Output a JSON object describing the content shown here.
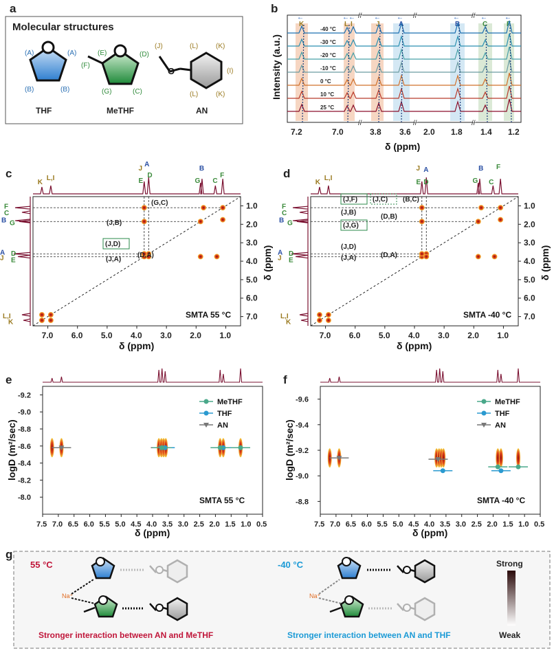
{
  "panel_a": {
    "label": "a",
    "title": "Molecular structures",
    "molecules": [
      {
        "name": "THF",
        "sites": [
          "(A)",
          "(A)",
          "(B)",
          "(B)"
        ]
      },
      {
        "name": "MeTHF",
        "sites": [
          "(E)",
          "(D)",
          "(F)",
          "(G)",
          "(C)"
        ]
      },
      {
        "name": "AN",
        "sites": [
          "(J)",
          "(L)",
          "(K)",
          "(I)",
          "(L)",
          "(K)"
        ]
      }
    ]
  },
  "panel_b": {
    "label": "b",
    "ylabel": "Intensity (a.u.)",
    "xlabel": "δ (ppm)",
    "peak_labels": [
      "K",
      "L",
      "I",
      "J",
      "A",
      "B",
      "C",
      "F"
    ],
    "temperatures": [
      "-40 °C",
      "-30 °C",
      "-20 °C",
      "-10 °C",
      "0 °C",
      "10 °C",
      "25 °C"
    ],
    "x_ticks": [
      "7.2",
      "7.0",
      "3.8",
      "3.6",
      "2.0",
      "1.8",
      "1.4",
      "1.2"
    ]
  },
  "panel_c": {
    "label": "c",
    "caption": "SMTA 55 °C",
    "xlabel": "δ (ppm)",
    "ylabel": "δ (ppm)",
    "x_ticks": [
      "7.0",
      "6.0",
      "5.0",
      "4.0",
      "3.0",
      "2.0",
      "1.0"
    ],
    "y_ticks": [
      "1.0",
      "2.0",
      "3.0",
      "4.0",
      "5.0",
      "6.0",
      "7.0"
    ],
    "top_labels": [
      "K",
      "L,I",
      "J",
      "A",
      "D",
      "E",
      "B",
      "G",
      "C",
      "F"
    ],
    "side_labels": [
      "F",
      "C",
      "G",
      "B",
      "A",
      "D",
      "J",
      "E",
      "L,I",
      "K"
    ],
    "cross_peaks": [
      "(G,C)",
      "(J,B)",
      "(J,D)",
      "(J,A)",
      "(D,A)"
    ]
  },
  "panel_d": {
    "label": "d",
    "caption": "SMTA -40 °C",
    "xlabel": "δ (ppm)",
    "ylabel": "δ (ppm)",
    "x_ticks": [
      "7.0",
      "6.0",
      "5.0",
      "4.0",
      "3.0",
      "2.0",
      "1.0"
    ],
    "y_ticks": [
      "1.0",
      "2.0",
      "3.0",
      "4.0",
      "5.0",
      "6.0",
      "7.0"
    ],
    "top_labels": [
      "K",
      "L,I",
      "J",
      "A",
      "E",
      "D",
      "G",
      "B",
      "C",
      "F"
    ],
    "side_labels": [
      "F",
      "C",
      "G",
      "B",
      "A",
      "D",
      "J",
      "E",
      "L,I",
      "K"
    ],
    "cross_peaks": [
      "(J,F)",
      "(J,C)",
      "(B,C)",
      "(J,B)",
      "(D,B)",
      "(J,G)",
      "(J,D)",
      "(J,A)",
      "(D,A)"
    ]
  },
  "chart_data": [
    {
      "type": "scatter",
      "title": "SMTA 55 °C",
      "panel": "e",
      "xlabel": "δ (ppm)",
      "ylabel": "logD (m²/sec)",
      "xlim": [
        7.5,
        0.5
      ],
      "ylim": [
        -9.3,
        -7.8
      ],
      "x_ticks": [
        "7.5",
        "7.0",
        "6.5",
        "6.0",
        "5.5",
        "5.0",
        "4.5",
        "4.0",
        "3.5",
        "3.0",
        "2.5",
        "2.0",
        "1.5",
        "1.0",
        "0.5"
      ],
      "y_ticks": [
        "-9.2",
        "-9.0",
        "-8.8",
        "-8.6",
        "-8.4",
        "-8.2",
        "-8.0"
      ],
      "legend": [
        "MeTHF",
        "THF",
        "AN"
      ],
      "series": [
        {
          "name": "AN",
          "color": "#777777",
          "x": [
            6.9,
            3.75
          ],
          "y": [
            -8.58,
            -8.58
          ]
        },
        {
          "name": "THF",
          "color": "#2a9ad0",
          "x": [
            3.6,
            1.75
          ],
          "y": [
            -8.58,
            -8.58
          ]
        },
        {
          "name": "MeTHF",
          "color": "#4aa88a",
          "x": [
            3.7,
            1.85,
            1.2
          ],
          "y": [
            -8.58,
            -8.58,
            -8.58
          ]
        }
      ]
    },
    {
      "type": "scatter",
      "title": "SMTA -40 °C",
      "panel": "f",
      "xlabel": "δ (ppm)",
      "ylabel": "logD (m²/sec)",
      "xlim": [
        7.5,
        0.5
      ],
      "ylim": [
        -9.7,
        -8.7
      ],
      "x_ticks": [
        "7.5",
        "7.0",
        "6.5",
        "6.0",
        "5.5",
        "5.0",
        "4.5",
        "4.0",
        "3.5",
        "3.0",
        "2.5",
        "2.0",
        "1.5",
        "1.0",
        "0.5"
      ],
      "y_ticks": [
        "-9.6",
        "-9.4",
        "-9.2",
        "-9.0",
        "-8.8"
      ],
      "legend": [
        "MeTHF",
        "THF",
        "AN"
      ],
      "series": [
        {
          "name": "AN",
          "color": "#777777",
          "x": [
            6.9,
            3.75
          ],
          "y": [
            -9.14,
            -9.13
          ]
        },
        {
          "name": "THF",
          "color": "#2a9ad0",
          "x": [
            3.6,
            1.75
          ],
          "y": [
            -9.04,
            -9.04
          ]
        },
        {
          "name": "MeTHF",
          "color": "#4aa88a",
          "x": [
            1.85,
            1.2
          ],
          "y": [
            -9.07,
            -9.07
          ]
        }
      ]
    }
  ],
  "panel_g": {
    "label": "g",
    "left_temp": "55 °C",
    "right_temp": "-40 °C",
    "ion": "Na⁺",
    "left_caption": "Stronger interaction between AN and MeTHF",
    "right_caption": "Stronger interaction between AN and THF",
    "scale_top": "Strong",
    "scale_bottom": "Weak"
  },
  "colors": {
    "red": "#c0163a",
    "cyan": "#1b9ad6",
    "wine": "#7a1030",
    "blue": "#2a4fa3",
    "green": "#3a8a3a",
    "gold": "#9a7a20"
  }
}
